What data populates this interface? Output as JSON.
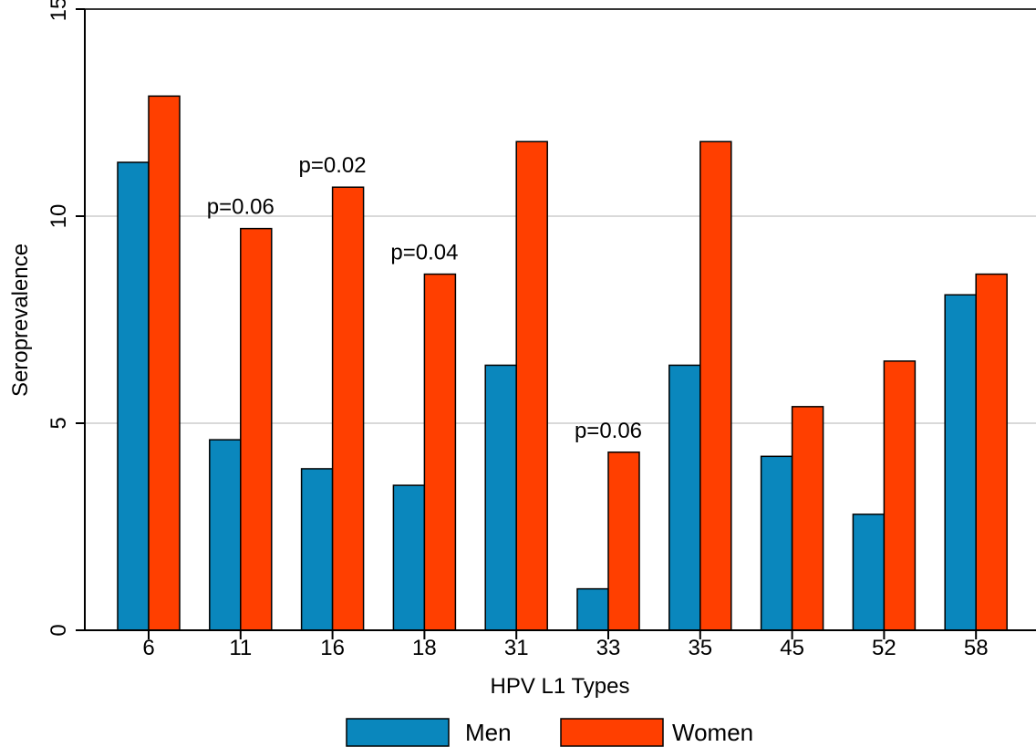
{
  "chart_data": {
    "type": "bar",
    "xlabel": "HPV L1 Types",
    "ylabel": "Seroprevalence",
    "ylim": [
      0,
      15.0
    ],
    "yticks": [
      0,
      5,
      10,
      15
    ],
    "categories": [
      "6",
      "11",
      "16",
      "18",
      "31",
      "33",
      "35",
      "45",
      "52",
      "58"
    ],
    "series": [
      {
        "name": "Men",
        "color": "#0a87bd",
        "values": [
          11.3,
          4.6,
          3.9,
          3.5,
          6.4,
          1.0,
          6.4,
          4.2,
          2.8,
          8.1
        ]
      },
      {
        "name": "Women",
        "color": "#ff3f00",
        "values": [
          12.9,
          9.7,
          10.7,
          8.6,
          11.8,
          4.3,
          11.8,
          5.4,
          6.5,
          8.6
        ]
      }
    ],
    "annotations": [
      {
        "category": "11",
        "text": "p=0.06"
      },
      {
        "category": "16",
        "text": "p=0.02"
      },
      {
        "category": "18",
        "text": "p=0.04"
      },
      {
        "category": "33",
        "text": "p=0.06"
      }
    ],
    "grid": true,
    "legend": "bottom"
  }
}
